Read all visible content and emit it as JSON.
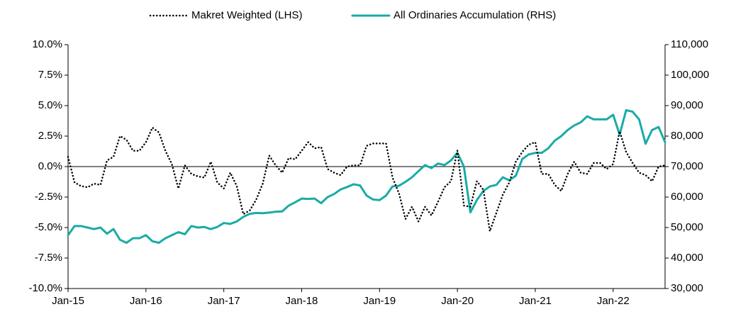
{
  "chart_data": {
    "type": "line",
    "categories": [
      "Jan-15",
      null,
      null,
      null,
      null,
      null,
      null,
      null,
      null,
      null,
      null,
      null,
      "Jan-16",
      null,
      null,
      null,
      null,
      null,
      null,
      null,
      null,
      null,
      null,
      null,
      "Jan-17",
      null,
      null,
      null,
      null,
      null,
      null,
      null,
      null,
      null,
      null,
      null,
      "Jan-18",
      null,
      null,
      null,
      null,
      null,
      null,
      null,
      null,
      null,
      null,
      null,
      "Jan-19",
      null,
      null,
      null,
      null,
      null,
      null,
      null,
      null,
      null,
      null,
      null,
      "Jan-20",
      null,
      null,
      null,
      null,
      null,
      null,
      null,
      null,
      null,
      null,
      null,
      "Jan-21",
      null,
      null,
      null,
      null,
      null,
      null,
      null,
      null,
      null,
      null,
      null,
      "Jan-22",
      null,
      null,
      null,
      null,
      null,
      null,
      null,
      null
    ],
    "series": [
      {
        "name": "Makret Weighted (LHS)",
        "color": "#000000",
        "dash": true,
        "axis": "y",
        "values": [
          0.8,
          -1.3,
          -1.6,
          -1.7,
          -1.4,
          -1.5,
          0.5,
          0.8,
          2.5,
          2.2,
          1.3,
          1.3,
          2.0,
          3.2,
          2.8,
          1.3,
          0.2,
          -1.8,
          0.1,
          -0.6,
          -0.8,
          -0.9,
          0.4,
          -1.3,
          -1.8,
          -0.5,
          -1.6,
          -3.9,
          -3.6,
          -2.7,
          -1.4,
          0.9,
          0.1,
          -0.5,
          0.7,
          0.6,
          1.3,
          2.0,
          1.5,
          1.6,
          -0.2,
          -0.5,
          -0.7,
          0.0,
          0.1,
          0.1,
          1.7,
          1.9,
          1.9,
          1.9,
          -0.9,
          -2.2,
          -4.3,
          -3.3,
          -4.5,
          -3.3,
          -4.0,
          -2.9,
          -1.7,
          -1.2,
          1.3,
          -3.2,
          -3.3,
          -1.2,
          -1.9,
          -5.3,
          -3.8,
          -2.3,
          -1.3,
          0.4,
          1.2,
          1.8,
          2.0,
          -0.6,
          -0.6,
          -1.5,
          -2.0,
          -0.6,
          0.4,
          -0.5,
          -0.6,
          0.3,
          0.3,
          -0.2,
          0.2,
          2.9,
          1.2,
          0.3,
          -0.5,
          -0.7,
          -1.2,
          0.0,
          0.1
        ]
      },
      {
        "name": "All Ordinaries Accumulation (RHS)",
        "color": "#1aaba6",
        "dash": false,
        "axis": "y2",
        "values": [
          47500,
          50500,
          50500,
          50000,
          49500,
          50000,
          48000,
          49500,
          46000,
          45000,
          46500,
          46500,
          47500,
          45500,
          45000,
          46500,
          47500,
          48500,
          47800,
          50500,
          50000,
          50200,
          49500,
          50200,
          51500,
          51200,
          52000,
          53500,
          54500,
          54800,
          54700,
          54900,
          55200,
          55300,
          57200,
          58300,
          59500,
          59400,
          59500,
          58000,
          60000,
          61000,
          62500,
          63300,
          64200,
          63800,
          60500,
          59200,
          59000,
          60500,
          63500,
          63700,
          65000,
          66500,
          68500,
          70500,
          69500,
          71000,
          70500,
          72000,
          74500,
          70000,
          55000,
          59000,
          62000,
          63500,
          64000,
          66500,
          65500,
          67000,
          72500,
          74000,
          74500,
          74500,
          76000,
          78500,
          80000,
          82000,
          83500,
          84500,
          86500,
          85500,
          85500,
          85500,
          87000,
          80500,
          88500,
          88000,
          85500,
          77500,
          82000,
          83000,
          78000
        ]
      }
    ],
    "ylim": [
      -10,
      10
    ],
    "yticks": [
      {
        "value": -10,
        "label": "-10.0%"
      },
      {
        "value": -7.5,
        "label": "-7.5%"
      },
      {
        "value": -5,
        "label": "-5.0%"
      },
      {
        "value": -2.5,
        "label": "-2.5%"
      },
      {
        "value": 0,
        "label": "0.0%"
      },
      {
        "value": 2.5,
        "label": "2.5%"
      },
      {
        "value": 5,
        "label": "5.0%"
      },
      {
        "value": 7.5,
        "label": "7.5%"
      },
      {
        "value": 10,
        "label": "10.0%"
      }
    ],
    "y2lim": [
      30000,
      110000
    ],
    "y2ticks": [
      {
        "value": 30000,
        "label": "30,000"
      },
      {
        "value": 40000,
        "label": "40,000"
      },
      {
        "value": 50000,
        "label": "50,000"
      },
      {
        "value": 60000,
        "label": "60,000"
      },
      {
        "value": 70000,
        "label": "70,000"
      },
      {
        "value": 80000,
        "label": "80,000"
      },
      {
        "value": 90000,
        "label": "90,000"
      },
      {
        "value": 100000,
        "label": "100,000"
      },
      {
        "value": 110000,
        "label": "110,000"
      }
    ],
    "legend": "top"
  }
}
